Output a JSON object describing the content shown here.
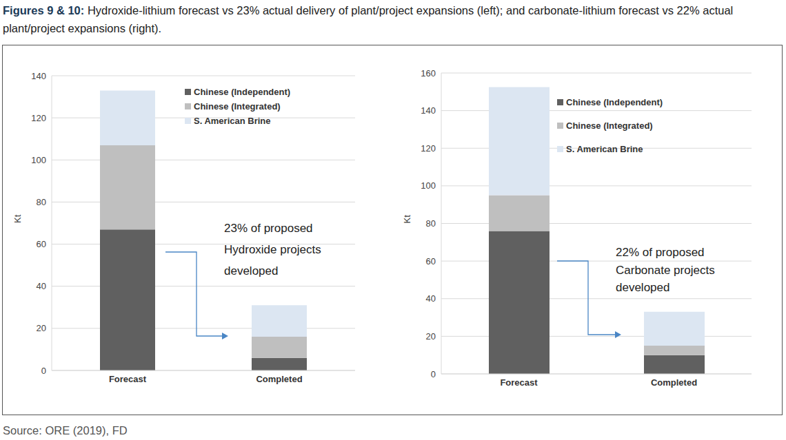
{
  "title_bold": "Figures 9 & 10:",
  "title": "Hydroxide-lithium forecast vs 23% actual delivery of plant/project expansions (left); and carbonate-lithium forecast vs 22% actual plant/project expansions (right).",
  "source": "Source: ORE (2019), FD",
  "chart_data": [
    {
      "type": "bar",
      "stacked": true,
      "categories": [
        "Forecast",
        "Completed"
      ],
      "y_label": "Kt",
      "ylim": [
        0,
        140
      ],
      "yticks": [
        0,
        20,
        40,
        60,
        80,
        100,
        120,
        140
      ],
      "grid": true,
      "legend": "upper right",
      "annotation": [
        "23% of proposed",
        "Hydroxide projects",
        "developed"
      ],
      "series": [
        {
          "name": "Chinese (Independent)",
          "color": "#606060",
          "values": [
            67,
            6
          ]
        },
        {
          "name": "Chinese (Integrated)",
          "color": "#bfbfbf",
          "values": [
            40,
            10
          ]
        },
        {
          "name": "S. American Brine",
          "color": "#dce6f2",
          "values": [
            26,
            15
          ]
        }
      ]
    },
    {
      "type": "bar",
      "stacked": true,
      "categories": [
        "Forecast",
        "Completed"
      ],
      "y_label": "Kt",
      "ylim": [
        0,
        160
      ],
      "yticks": [
        0,
        20,
        40,
        60,
        80,
        100,
        120,
        140,
        160
      ],
      "grid": true,
      "legend": "upper right",
      "annotation": [
        "22% of proposed",
        "Carbonate projects",
        "developed"
      ],
      "series": [
        {
          "name": "Chinese (Independent)",
          "color": "#606060",
          "values": [
            76,
            10
          ]
        },
        {
          "name": "Chinese (Integrated)",
          "color": "#bfbfbf",
          "values": [
            19,
            5
          ]
        },
        {
          "name": "S. American Brine",
          "color": "#dce6f2",
          "values": [
            57.5,
            18
          ]
        }
      ]
    }
  ]
}
